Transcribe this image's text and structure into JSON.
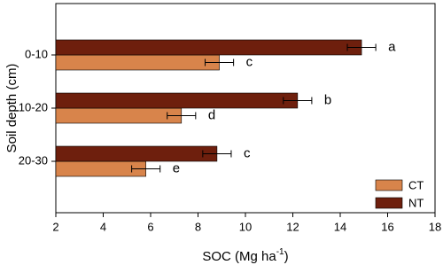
{
  "chart_data": {
    "type": "hbar",
    "categories": [
      "0-10",
      "10-20",
      "20-30"
    ],
    "series": [
      {
        "name": "CT",
        "color": "#d8844b",
        "values": [
          8.9,
          7.3,
          5.8
        ],
        "errors": [
          0.6,
          0.6,
          0.6
        ],
        "letters": [
          "c",
          "d",
          "e"
        ]
      },
      {
        "name": "NT",
        "color": "#6e1f0d",
        "values": [
          14.9,
          12.2,
          8.8
        ],
        "errors": [
          0.6,
          0.6,
          0.6
        ],
        "letters": [
          "a",
          "b",
          "c"
        ]
      }
    ],
    "x_label": [
      "SOC (Mg ha",
      "-1",
      ")"
    ],
    "y_label": "Soil depth (cm)",
    "xlim": [
      2,
      18
    ],
    "xticks": [
      2,
      4,
      6,
      8,
      10,
      12,
      14,
      16,
      18
    ],
    "legend": "lower right"
  }
}
